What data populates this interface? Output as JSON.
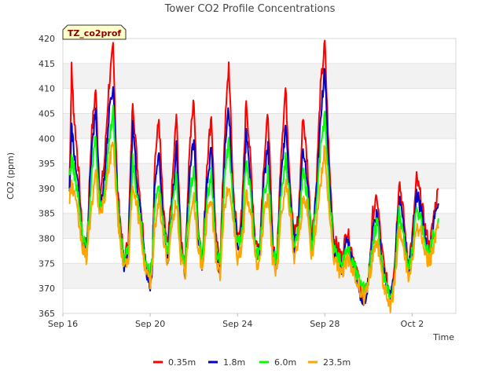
{
  "chart_data": {
    "type": "line",
    "title": "Tower CO2 Profile Concentrations",
    "badge": "TZ_co2prof",
    "xlabel": "Time",
    "ylabel": "CO2 (ppm)",
    "xlim": [
      0,
      18
    ],
    "ylim": [
      365,
      420
    ],
    "yticks": [
      365,
      370,
      375,
      380,
      385,
      390,
      395,
      400,
      405,
      410,
      415,
      420
    ],
    "xticks": [
      {
        "label": "Sep 16",
        "day": 0
      },
      {
        "label": "Sep 20",
        "day": 4
      },
      {
        "label": "Sep 24",
        "day": 8
      },
      {
        "label": "Sep 28",
        "day": 12
      },
      {
        "label": "Oct 2",
        "day": 16
      }
    ],
    "series": [
      {
        "name": "0.35m",
        "color": "#ff0000",
        "offset": 1.0,
        "day": [
          0.3,
          0.4,
          0.5,
          0.7,
          0.9,
          1.1,
          1.3,
          1.5,
          1.7,
          1.9,
          2.1,
          2.3,
          2.5,
          2.6,
          2.8,
          3.0,
          3.2,
          3.4,
          3.6,
          3.8,
          4.0,
          4.1,
          4.2,
          4.4,
          4.6,
          4.8,
          5.0,
          5.2,
          5.4,
          5.6,
          5.8,
          6.0,
          6.2,
          6.4,
          6.6,
          6.8,
          7.0,
          7.2,
          7.4,
          7.6,
          7.8,
          8.0,
          8.2,
          8.4,
          8.6,
          8.8,
          9.0,
          9.2,
          9.4,
          9.6,
          9.8,
          10.0,
          10.2,
          10.4,
          10.6,
          10.8,
          11.0,
          11.2,
          11.4,
          11.6,
          11.8,
          12.0,
          12.2,
          12.4,
          12.6,
          12.8,
          13.0,
          13.2,
          13.4,
          13.6,
          13.8,
          14.0,
          14.2,
          14.4,
          14.6,
          14.8,
          15.0,
          15.2,
          15.4,
          15.6,
          15.8,
          16.0,
          16.2,
          16.4,
          16.6,
          16.8,
          17.0,
          17.2
        ],
        "values": [
          390,
          414,
          405,
          395,
          380,
          378,
          400,
          410,
          388,
          395,
          410,
          418,
          390,
          385,
          375,
          380,
          408,
          395,
          385,
          375,
          372,
          376,
          395,
          404,
          385,
          378,
          390,
          405,
          380,
          375,
          398,
          408,
          382,
          376,
          395,
          405,
          380,
          375,
          400,
          415,
          390,
          380,
          385,
          408,
          395,
          380,
          378,
          395,
          405,
          380,
          375,
          398,
          410,
          392,
          380,
          385,
          405,
          395,
          380,
          390,
          410,
          419,
          395,
          380,
          378,
          376,
          382,
          378,
          375,
          370,
          368,
          372,
          385,
          388,
          378,
          372,
          369,
          375,
          392,
          385,
          375,
          380,
          392,
          388,
          382,
          378,
          385,
          390
        ]
      },
      {
        "name": "1.8m",
        "color": "#0000cc",
        "offset": 0.5,
        "day": [
          0.3,
          0.4,
          0.5,
          0.7,
          0.9,
          1.1,
          1.3,
          1.5,
          1.7,
          1.9,
          2.1,
          2.3,
          2.5,
          2.6,
          2.8,
          3.0,
          3.2,
          3.4,
          3.6,
          3.8,
          4.0,
          4.1,
          4.2,
          4.4,
          4.6,
          4.8,
          5.0,
          5.2,
          5.4,
          5.6,
          5.8,
          6.0,
          6.2,
          6.4,
          6.6,
          6.8,
          7.0,
          7.2,
          7.4,
          7.6,
          7.8,
          8.0,
          8.2,
          8.4,
          8.6,
          8.8,
          9.0,
          9.2,
          9.4,
          9.6,
          9.8,
          10.0,
          10.2,
          10.4,
          10.6,
          10.8,
          11.0,
          11.2,
          11.4,
          11.6,
          11.8,
          12.0,
          12.2,
          12.4,
          12.6,
          12.8,
          13.0,
          13.2,
          13.4,
          13.6,
          13.8,
          14.0,
          14.2,
          14.4,
          14.6,
          14.8,
          15.0,
          15.2,
          15.4,
          15.6,
          15.8,
          16.0,
          16.2,
          16.4,
          16.6,
          16.8,
          17.0,
          17.2
        ],
        "values": [
          389,
          402,
          398,
          390,
          379,
          377,
          396,
          406,
          386,
          392,
          404,
          411,
          388,
          383,
          374,
          378,
          402,
          391,
          383,
          373,
          370,
          374,
          390,
          398,
          383,
          376,
          387,
          398,
          378,
          373,
          393,
          400,
          380,
          374,
          391,
          398,
          378,
          373,
          396,
          406,
          388,
          378,
          382,
          401,
          391,
          378,
          376,
          391,
          398,
          378,
          373,
          394,
          402,
          389,
          378,
          383,
          398,
          391,
          378,
          388,
          404,
          414,
          391,
          378,
          376,
          374,
          380,
          376,
          373,
          369,
          367,
          371,
          382,
          385,
          376,
          370,
          368,
          373,
          388,
          383,
          373,
          378,
          389,
          386,
          380,
          376,
          383,
          387
        ]
      },
      {
        "name": "6.0m",
        "color": "#00ff00",
        "offset": 0.0,
        "day": [
          0.3,
          0.4,
          0.5,
          0.7,
          0.9,
          1.1,
          1.3,
          1.5,
          1.7,
          1.9,
          2.1,
          2.3,
          2.5,
          2.6,
          2.8,
          3.0,
          3.2,
          3.4,
          3.6,
          3.8,
          4.0,
          4.1,
          4.2,
          4.4,
          4.6,
          4.8,
          5.0,
          5.2,
          5.4,
          5.6,
          5.8,
          6.0,
          6.2,
          6.4,
          6.6,
          6.8,
          7.0,
          7.2,
          7.4,
          7.6,
          7.8,
          8.0,
          8.2,
          8.4,
          8.6,
          8.8,
          9.0,
          9.2,
          9.4,
          9.6,
          9.8,
          10.0,
          10.2,
          10.4,
          10.6,
          10.8,
          11.0,
          11.2,
          11.4,
          11.6,
          11.8,
          12.0,
          12.2,
          12.4,
          12.6,
          12.8,
          13.0,
          13.2,
          13.4,
          13.6,
          13.8,
          14.0,
          14.2,
          14.4,
          14.6,
          14.8,
          15.0,
          15.2,
          15.4,
          15.6,
          15.8,
          16.0,
          16.2,
          16.4,
          16.6,
          16.8,
          17.0,
          17.2
        ],
        "values": [
          392,
          396,
          394,
          388,
          380,
          378,
          392,
          400,
          386,
          390,
          398,
          406,
          387,
          382,
          376,
          378,
          396,
          388,
          382,
          375,
          373,
          375,
          386,
          392,
          382,
          377,
          385,
          393,
          378,
          375,
          388,
          394,
          380,
          376,
          388,
          393,
          378,
          375,
          392,
          400,
          386,
          378,
          381,
          396,
          389,
          378,
          377,
          388,
          394,
          378,
          375,
          390,
          396,
          387,
          378,
          382,
          393,
          389,
          378,
          386,
          398,
          404,
          389,
          378,
          376,
          375,
          378,
          376,
          374,
          371,
          370,
          372,
          380,
          383,
          375,
          370,
          368,
          373,
          385,
          381,
          374,
          377,
          386,
          384,
          379,
          377,
          381,
          384
        ]
      },
      {
        "name": "23.5m",
        "color": "#ffa500",
        "offset": -0.5,
        "day": [
          0.3,
          0.4,
          0.5,
          0.7,
          0.9,
          1.1,
          1.3,
          1.5,
          1.7,
          1.9,
          2.1,
          2.3,
          2.5,
          2.6,
          2.8,
          3.0,
          3.2,
          3.4,
          3.6,
          3.8,
          4.0,
          4.1,
          4.2,
          4.4,
          4.6,
          4.8,
          5.0,
          5.2,
          5.4,
          5.6,
          5.8,
          6.0,
          6.2,
          6.4,
          6.6,
          6.8,
          7.0,
          7.2,
          7.4,
          7.6,
          7.8,
          8.0,
          8.2,
          8.4,
          8.6,
          8.8,
          9.0,
          9.2,
          9.4,
          9.6,
          9.8,
          10.0,
          10.2,
          10.4,
          10.6,
          10.8,
          11.0,
          11.2,
          11.4,
          11.6,
          11.8,
          12.0,
          12.2,
          12.4,
          12.6,
          12.8,
          13.0,
          13.2,
          13.4,
          13.6,
          13.8,
          14.0,
          14.2,
          14.4,
          14.6,
          14.8,
          15.0,
          15.2,
          15.4,
          15.6,
          15.8,
          16.0,
          16.2,
          16.4,
          16.6,
          16.8,
          17.0,
          17.2
        ],
        "values": [
          388,
          391,
          389,
          384,
          378,
          376,
          386,
          393,
          384,
          388,
          394,
          400,
          385,
          380,
          374,
          376,
          390,
          386,
          380,
          373,
          371,
          374,
          382,
          388,
          380,
          375,
          382,
          388,
          376,
          372,
          384,
          388,
          378,
          374,
          384,
          388,
          376,
          373,
          386,
          391,
          384,
          376,
          378,
          389,
          386,
          376,
          374,
          384,
          389,
          376,
          373,
          384,
          392,
          385,
          376,
          380,
          388,
          386,
          376,
          383,
          391,
          398,
          385,
          376,
          374,
          373,
          376,
          374,
          372,
          370,
          368,
          371,
          377,
          380,
          373,
          369,
          366,
          371,
          381,
          379,
          372,
          375,
          382,
          381,
          377,
          375,
          379,
          382
        ]
      }
    ],
    "legend_position": "bottom-center",
    "grid": true
  }
}
